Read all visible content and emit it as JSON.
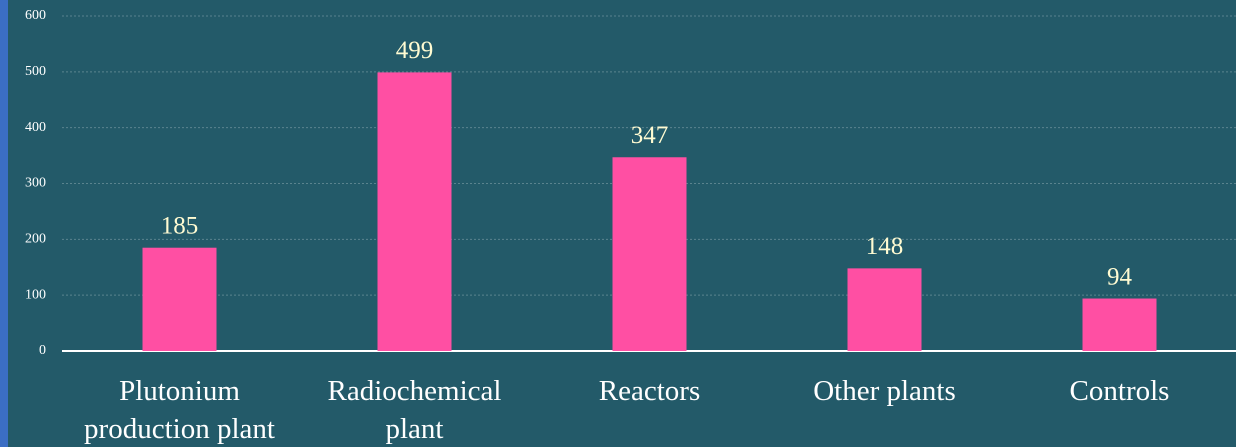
{
  "chart_data": {
    "type": "bar",
    "categories": [
      "Plutonium production plant",
      "Radiochemical plant",
      "Reactors",
      "Other plants",
      "Controls"
    ],
    "values": [
      185,
      499,
      347,
      148,
      94
    ],
    "color": "#ff4fa3",
    "ylim": [
      0,
      600
    ],
    "yticks": [
      0,
      100,
      200,
      300,
      400,
      500,
      600
    ],
    "grid": true
  }
}
